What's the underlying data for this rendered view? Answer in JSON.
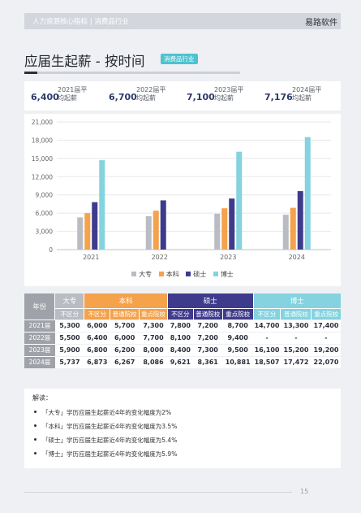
{
  "header": {
    "breadcrumb": "人力资源核心指标   |   消费品行业",
    "brand": "易路软件"
  },
  "page": {
    "title": "应届生起薪 - 按时间",
    "tag": "消费品行业",
    "page_number": "15"
  },
  "kpis": [
    {
      "value": "6,400",
      "label": "2021届平均起薪"
    },
    {
      "value": "6,700",
      "label": "2022届平均起薪"
    },
    {
      "value": "7,100",
      "label": "2023届平均起薪"
    },
    {
      "value": "7,176",
      "label": "2024届平均起薪"
    }
  ],
  "chart_data": {
    "type": "bar",
    "categories": [
      "2021",
      "2022",
      "2023",
      "2024"
    ],
    "series": [
      {
        "name": "大专",
        "values": [
          5300,
          5500,
          5900,
          5737
        ]
      },
      {
        "name": "本科",
        "values": [
          6000,
          6400,
          6800,
          6873
        ]
      },
      {
        "name": "硕士",
        "values": [
          7800,
          8100,
          8400,
          9621
        ]
      },
      {
        "name": "博士",
        "values": [
          14700,
          0,
          16100,
          18507
        ]
      }
    ],
    "colors": [
      "#b9bcc2",
      "#f4a24c",
      "#3f3b8c",
      "#84d3df"
    ],
    "yticks": [
      "0",
      "3,000",
      "6,000",
      "9,000",
      "12,000",
      "15,000",
      "18,000",
      "21,000"
    ],
    "ylim": [
      0,
      21000
    ],
    "grid": true,
    "legend_position": "bottom"
  },
  "table": {
    "year_header": "年份",
    "groups": [
      {
        "label": "大专",
        "subs": [
          "不区分"
        ]
      },
      {
        "label": "本科",
        "subs": [
          "不区分",
          "普通院校",
          "重点院校"
        ]
      },
      {
        "label": "硕士",
        "subs": [
          "不区分",
          "普通院校",
          "重点院校"
        ]
      },
      {
        "label": "博士",
        "subs": [
          "不区分",
          "普通院校",
          "重点院校"
        ]
      }
    ],
    "rows": [
      {
        "year": "2021届",
        "cells": [
          "5,300",
          "6,000",
          "5,700",
          "7,300",
          "7,800",
          "7,200",
          "8,700",
          "14,700",
          "13,300",
          "17,400"
        ]
      },
      {
        "year": "2022届",
        "cells": [
          "5,500",
          "6,400",
          "6,000",
          "7,700",
          "8,100",
          "7,200",
          "9,400",
          "-",
          "-",
          "-"
        ]
      },
      {
        "year": "2023届",
        "cells": [
          "5,900",
          "6,800",
          "6,200",
          "8,000",
          "8,400",
          "7,300",
          "9,500",
          "16,100",
          "15,200",
          "19,200"
        ]
      },
      {
        "year": "2024届",
        "cells": [
          "5,737",
          "6,873",
          "6,267",
          "8,086",
          "9,621",
          "8,361",
          "10,881",
          "18,507",
          "17,472",
          "22,070"
        ]
      }
    ]
  },
  "notes": {
    "heading": "解读：",
    "items": [
      "「大专」学历应届生起薪近4年的变化幅度为2%",
      "「本科」学历应届生起薪近4年的变化幅度为3.5%",
      "「硕士」学历应届生起薪近4年的变化幅度为5.4%",
      "「博士」学历应届生起薪近4年的变化幅度为5.9%"
    ]
  }
}
